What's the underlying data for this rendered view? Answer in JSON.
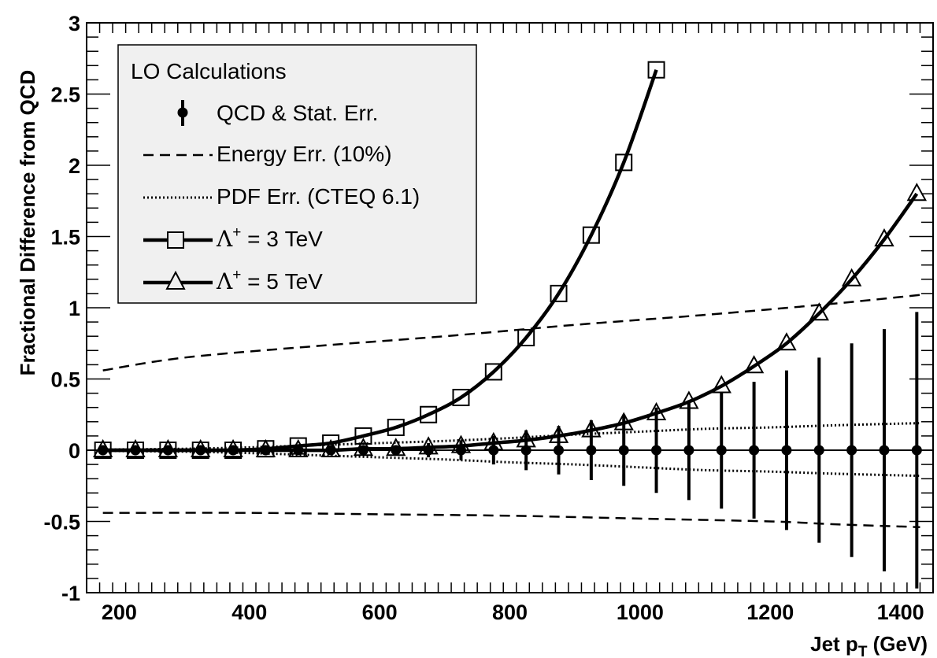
{
  "chart_data": {
    "type": "line",
    "title": "",
    "xlabel": {
      "prefix": "Jet p",
      "sub": "T",
      "suffix": " (GeV)"
    },
    "ylabel": "Fractional Difference from QCD",
    "xlim": [
      150,
      1450
    ],
    "ylim": [
      -1,
      3
    ],
    "x_ticks": [
      200,
      400,
      600,
      800,
      1000,
      1200,
      1400
    ],
    "x_tick_labels": [
      "200",
      "400",
      "600",
      "800",
      "1000",
      "1200",
      "1400"
    ],
    "y_ticks": [
      -1,
      -0.5,
      0,
      0.5,
      1,
      1.5,
      2,
      2.5,
      3
    ],
    "y_tick_labels": [
      "-1",
      "-0.5",
      "0",
      "0.5",
      "1",
      "1.5",
      "2",
      "2.5",
      "3"
    ],
    "grid": false,
    "legend": {
      "placement": "top-left",
      "header": "LO Calculations",
      "entries": [
        {
          "key": "qcd",
          "label": "QCD & Stat. Err."
        },
        {
          "key": "energy",
          "label": "Energy Err. (10%)"
        },
        {
          "key": "pdf",
          "label": "PDF Err. (CTEQ 6.1)"
        },
        {
          "key": "lam3",
          "sym": "Λ",
          "sup": "+",
          "label": " = 3 TeV"
        },
        {
          "key": "lam5",
          "sym": "Λ",
          "sup": "+",
          "label": " = 5 TeV"
        }
      ]
    },
    "x": [
      175,
      225,
      275,
      325,
      375,
      425,
      475,
      525,
      575,
      625,
      675,
      725,
      775,
      825,
      875,
      925,
      975,
      1025,
      1075,
      1125,
      1175,
      1225,
      1275,
      1325,
      1375,
      1425
    ],
    "series": [
      {
        "key": "qcd",
        "style": "points-with-errors",
        "values": [
          0,
          0,
          0,
          0,
          0,
          0,
          0,
          0,
          0,
          0,
          0,
          0,
          0,
          0,
          0,
          0,
          0,
          0,
          0,
          0,
          0,
          0,
          0,
          0,
          0,
          0
        ],
        "errors": [
          0.01,
          0.01,
          0.01,
          0.01,
          0.01,
          0.01,
          0.015,
          0.02,
          0.025,
          0.035,
          0.05,
          0.07,
          0.1,
          0.14,
          0.17,
          0.21,
          0.25,
          0.3,
          0.35,
          0.41,
          0.48,
          0.56,
          0.65,
          0.75,
          0.85,
          0.97
        ]
      },
      {
        "key": "energy_upper",
        "style": "dashed",
        "x": [
          175,
          300,
          500,
          700,
          900,
          1100,
          1300,
          1430
        ],
        "values": [
          0.56,
          0.65,
          0.73,
          0.8,
          0.88,
          0.95,
          1.03,
          1.09
        ]
      },
      {
        "key": "energy_lower",
        "style": "dashed",
        "x": [
          175,
          400,
          600,
          800,
          1000,
          1200,
          1300,
          1430
        ],
        "values": [
          -0.44,
          -0.44,
          -0.45,
          -0.46,
          -0.48,
          -0.5,
          -0.52,
          -0.54
        ]
      },
      {
        "key": "pdf_upper",
        "style": "dotted",
        "x": [
          175,
          300,
          400,
          500,
          600,
          700,
          800,
          900,
          1000,
          1100,
          1200,
          1300,
          1430
        ],
        "values": [
          0.005,
          0.01,
          0.02,
          0.035,
          0.05,
          0.065,
          0.085,
          0.11,
          0.13,
          0.15,
          0.16,
          0.175,
          0.19
        ],
        "values_lower": [
          -0.005,
          -0.01,
          -0.02,
          -0.035,
          -0.05,
          -0.065,
          -0.085,
          -0.1,
          -0.12,
          -0.14,
          -0.15,
          -0.165,
          -0.18
        ]
      },
      {
        "key": "lam3",
        "style": "line-with-squares",
        "x": [
          175,
          225,
          275,
          325,
          375,
          425,
          475,
          525,
          575,
          625,
          675,
          725,
          775,
          825,
          875,
          925,
          975,
          1025
        ],
        "values": [
          0.0,
          0.0,
          0.0,
          0.0,
          0.0,
          0.01,
          0.03,
          0.05,
          0.1,
          0.16,
          0.25,
          0.37,
          0.55,
          0.79,
          1.1,
          1.51,
          2.02,
          2.67
        ]
      },
      {
        "key": "lam5",
        "style": "line-with-triangles",
        "x": [
          175,
          225,
          275,
          325,
          375,
          425,
          475,
          525,
          575,
          625,
          675,
          725,
          775,
          825,
          875,
          925,
          975,
          1025,
          1075,
          1125,
          1175,
          1225,
          1275,
          1325,
          1375,
          1425
        ],
        "values": [
          0.0,
          0.0,
          0.0,
          0.0,
          0.0,
          0.0,
          0.0,
          0.0,
          0.01,
          0.01,
          0.02,
          0.03,
          0.05,
          0.07,
          0.1,
          0.14,
          0.19,
          0.26,
          0.34,
          0.45,
          0.59,
          0.75,
          0.96,
          1.2,
          1.48,
          1.8
        ]
      }
    ]
  }
}
